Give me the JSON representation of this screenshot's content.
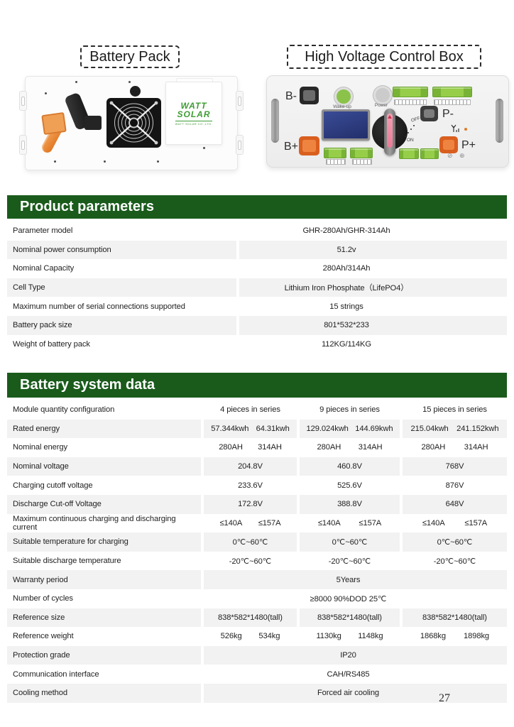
{
  "page": {
    "number": "27"
  },
  "colors": {
    "header_green": "#1a5b1c",
    "row_gray": "#f2f2f2",
    "accent_orange": "#e8692a",
    "terminal_green": "#8dc63f",
    "logo_green": "#3f9c35",
    "lcd_blue": "#2c3c82"
  },
  "figures": {
    "battery_pack": {
      "label": "Battery Pack",
      "logo_top": "WATT",
      "logo_bottom": "SOLAR",
      "logo_sub": "WATT SOLAR CO.,LTD."
    },
    "control_box": {
      "label": "High Voltage Control Box",
      "b_minus": "B-",
      "b_plus": "B+",
      "p_minus": "P-",
      "p_plus": "P+",
      "wake_up": "Wake-up",
      "power": "Power",
      "off": "OFF",
      "on": "ON"
    }
  },
  "product_parameters": {
    "title": "Product parameters",
    "rows": [
      {
        "label": "Parameter model",
        "value": "GHR-280Ah/GHR-314Ah"
      },
      {
        "label": "Nominal power consumption",
        "value": "51.2v"
      },
      {
        "label": "Nominal Capacity",
        "value": "280Ah/314Ah"
      },
      {
        "label": "Cell Type",
        "value": "Lithium Iron Phosphate（LifePO4）"
      },
      {
        "label": "Maximum number of serial connections supported",
        "value": "15 strings"
      },
      {
        "label": "Battery pack size",
        "value": "801*532*233"
      },
      {
        "label": "Weight of battery pack",
        "value": "112KG/114KG"
      }
    ]
  },
  "battery_system": {
    "title": "Battery system data",
    "rows": [
      {
        "label": "Module quantity configuration",
        "type": "triple",
        "cells": [
          "4 pieces in series",
          "9 pieces in series",
          "15 pieces in series"
        ]
      },
      {
        "label": "Rated energy",
        "type": "pairs",
        "cells": [
          [
            "57.344kwh",
            "64.31kwh"
          ],
          [
            "129.024kwh",
            "144.69kwh"
          ],
          [
            "215.04kwh",
            "241.152kwh"
          ]
        ]
      },
      {
        "label": "Nominal energy",
        "type": "pairs",
        "cells": [
          [
            "280AH",
            "314AH"
          ],
          [
            "280AH",
            "314AH"
          ],
          [
            "280AH",
            "314AH"
          ]
        ]
      },
      {
        "label": "Nominal voltage",
        "type": "triple",
        "cells": [
          "204.8V",
          "460.8V",
          "768V"
        ]
      },
      {
        "label": "Charging cutoff voltage",
        "type": "triple",
        "cells": [
          "233.6V",
          "525.6V",
          "876V"
        ]
      },
      {
        "label": "Discharge Cut-off Voltage",
        "type": "triple",
        "cells": [
          "172.8V",
          "388.8V",
          "648V"
        ]
      },
      {
        "label": "Maximum continuous charging and discharging current",
        "type": "pairs",
        "cells": [
          [
            "≤140A",
            "≤157A"
          ],
          [
            "≤140A",
            "≤157A"
          ],
          [
            "≤140A",
            "≤157A"
          ]
        ]
      },
      {
        "label": "Suitable temperature for charging",
        "type": "triple",
        "cells": [
          "0℃~60℃",
          "0℃~60℃",
          "0℃~60℃"
        ]
      },
      {
        "label": "Suitable discharge temperature",
        "type": "triple",
        "cells": [
          "-20℃~60℃",
          "-20℃~60℃",
          "-20℃~60℃"
        ]
      },
      {
        "label": "Warranty period",
        "type": "span",
        "cells": [
          "5Years"
        ]
      },
      {
        "label": "Number of cycles",
        "type": "span",
        "cells": [
          "≥8000 90%DOD 25℃"
        ]
      },
      {
        "label": "Reference size",
        "type": "triple",
        "cells": [
          "838*582*1480(tall)",
          "838*582*1480(tall)",
          "838*582*1480(tall)"
        ]
      },
      {
        "label": "Reference weight",
        "type": "pairs",
        "cells": [
          [
            "526kg",
            "534kg"
          ],
          [
            "1130kg",
            "1148kg"
          ],
          [
            "1868kg",
            "1898kg"
          ]
        ]
      },
      {
        "label": "Protection grade",
        "type": "span",
        "cells": [
          "IP20"
        ]
      },
      {
        "label": "Communication interface",
        "type": "span",
        "cells": [
          "CAH/RS485"
        ]
      },
      {
        "label": "Cooling method",
        "type": "span",
        "cells": [
          "Forced air cooling"
        ]
      }
    ]
  }
}
